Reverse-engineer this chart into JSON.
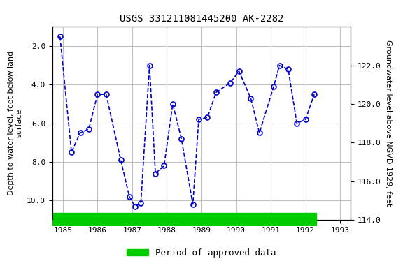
{
  "title": "USGS 331211081445200 AK-2282",
  "ylabel_left": "Depth to water level, feet below land\nsurface",
  "ylabel_right": "Groundwater level above NGVD 1929, feet",
  "legend_label": "Period of approved data",
  "ylim_left": [
    11.0,
    1.0
  ],
  "ylim_right": [
    114.0,
    124.0
  ],
  "xlim": [
    1984.7,
    1993.3
  ],
  "xticks": [
    1985,
    1986,
    1987,
    1988,
    1989,
    1990,
    1991,
    1992,
    1993
  ],
  "yticks_left": [
    2.0,
    4.0,
    6.0,
    8.0,
    10.0
  ],
  "yticks_right": [
    114.0,
    116.0,
    118.0,
    120.0,
    122.0
  ],
  "x_data": [
    1984.92,
    1985.25,
    1985.5,
    1985.75,
    1986.0,
    1986.25,
    1986.67,
    1986.92,
    1987.08,
    1987.25,
    1987.5,
    1987.67,
    1987.92,
    1988.17,
    1988.42,
    1988.75,
    1988.92,
    1989.17,
    1989.42,
    1989.83,
    1990.08,
    1990.42,
    1990.67,
    1991.08,
    1991.25,
    1991.5,
    1991.75,
    1992.0,
    1992.25
  ],
  "y_data": [
    1.5,
    7.5,
    6.5,
    6.3,
    4.5,
    4.5,
    7.9,
    9.8,
    10.3,
    10.15,
    3.0,
    8.6,
    8.2,
    5.0,
    6.8,
    10.2,
    5.8,
    5.7,
    4.4,
    3.9,
    3.3,
    4.7,
    6.5,
    4.1,
    3.0,
    3.2,
    6.0,
    5.8,
    4.5
  ],
  "line_color": "#0000cc",
  "marker_facecolor": "none",
  "marker_style": "o",
  "marker_size": 5,
  "marker_edgewidth": 1.2,
  "line_style": "--",
  "line_width": 1.2,
  "green_bar_color": "#00cc00",
  "green_bar_xmin": 1984.7,
  "green_bar_xmax": 1992.3,
  "background_color": "#ffffff",
  "grid_color": "#c0c0c0",
  "title_fontsize": 10,
  "axis_label_fontsize": 8,
  "tick_fontsize": 8,
  "legend_fontsize": 9
}
